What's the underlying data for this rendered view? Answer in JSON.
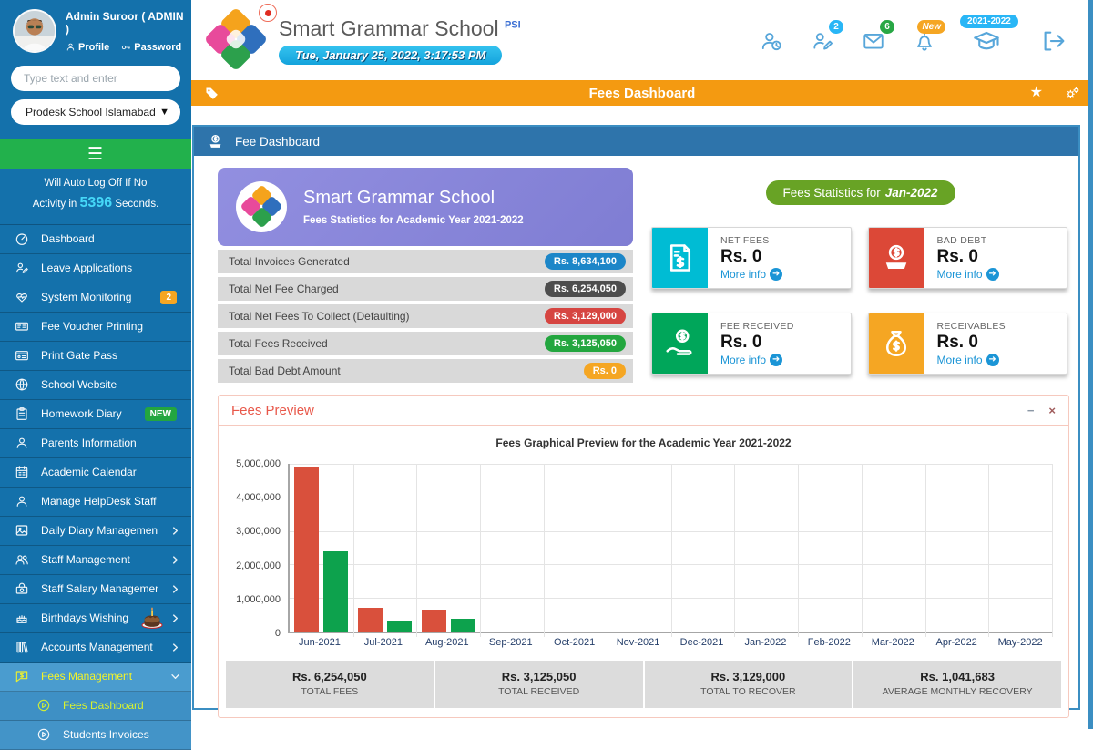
{
  "sidebar": {
    "user": {
      "name": "Admin Suroor ( ADMIN )",
      "profile_label": "Profile",
      "password_label": "Password"
    },
    "search_placeholder": "Type text and enter",
    "school_select_value": "Prodesk School Islamabad",
    "auto_logoff": {
      "line1": "Will Auto Log Off If No",
      "prefix": "Activity in",
      "seconds": "5396",
      "suffix": "Seconds."
    },
    "items": [
      {
        "label": "Dashboard",
        "icon": "gauge-icon"
      },
      {
        "label": "Leave Applications",
        "icon": "user-pen-icon"
      },
      {
        "label": "System Monitoring",
        "icon": "heart-pulse-icon",
        "badge": "2",
        "badge_color": "#F5A623"
      },
      {
        "label": "Fee Voucher Printing",
        "icon": "money-check-icon"
      },
      {
        "label": "Print Gate Pass",
        "icon": "id-card-icon"
      },
      {
        "label": "School Website",
        "icon": "globe-icon"
      },
      {
        "label": "Homework Diary",
        "icon": "clipboard-icon",
        "badge": "NEW",
        "badge_color": "#23A63F"
      },
      {
        "label": "Parents Information",
        "icon": "user-icon"
      },
      {
        "label": "Academic Calendar",
        "icon": "calendar-icon"
      },
      {
        "label": "Manage HelpDesk Staff",
        "icon": "user-icon"
      },
      {
        "label": "Daily Diary Management",
        "icon": "image-icon",
        "chevron": true
      },
      {
        "label": "Staff Management",
        "icon": "users-icon",
        "chevron": true
      },
      {
        "label": "Staff Salary Management",
        "icon": "salary-icon",
        "chevron": true
      },
      {
        "label": "Birthdays Wishing",
        "icon": "cake-icon",
        "chevron": true
      },
      {
        "label": "Accounts Management",
        "icon": "books-icon",
        "chevron": true
      }
    ],
    "fees_management_label": "Fees Management",
    "submenu": [
      {
        "label": "Fees Dashboard",
        "active": true
      },
      {
        "label": "Students Invoices",
        "active": false
      }
    ]
  },
  "header": {
    "school_name": "Smart Grammar School",
    "school_sup": "PSI",
    "datetime": "Tue, January 25, 2022, 3:17:53 PM",
    "badges": {
      "leave_requests": "2",
      "messages": "6",
      "notifications": "New",
      "session": "2021-2022"
    }
  },
  "titlebar": {
    "title": "Fees Dashboard"
  },
  "panel": {
    "title": "Fee Dashboard",
    "card": {
      "school": "Smart Grammar School",
      "subtitle": "Fees Statistics for Academic Year 2021-2022"
    },
    "stats": [
      {
        "label": "Total Invoices Generated",
        "value": "Rs. 8,634,100",
        "color": "#1C86C8"
      },
      {
        "label": "Total Net Fee Charged",
        "value": "Rs. 6,254,050",
        "color": "#4D4D4D"
      },
      {
        "label": "Total Net Fees To Collect (Defaulting)",
        "value": "Rs. 3,129,000",
        "color": "#D64541"
      },
      {
        "label": "Total Fees Received",
        "value": "Rs. 3,125,050",
        "color": "#23A63F"
      },
      {
        "label": "Total Bad Debt Amount",
        "value": "Rs. 0",
        "color": "#F5A623"
      }
    ],
    "month_pill": {
      "prefix": "Fees Statistics for",
      "month": "Jan-2022"
    },
    "cards": [
      {
        "label": "NET FEES",
        "value": "Rs. 0",
        "more": "More info",
        "color": "#00BCD4",
        "icon": "file-invoice-dollar-icon"
      },
      {
        "label": "BAD DEBT",
        "value": "Rs. 0",
        "more": "More info",
        "color": "#DC4837",
        "icon": "donate-icon"
      },
      {
        "label": "FEE RECEIVED",
        "value": "Rs. 0",
        "more": "More info",
        "color": "#00A65A",
        "icon": "hand-holding-dollar-icon"
      },
      {
        "label": "RECEIVABLES",
        "value": "Rs. 0",
        "more": "More info",
        "color": "#F5A623",
        "icon": "money-bag-icon"
      }
    ]
  },
  "preview": {
    "title": "Fees Preview",
    "minimize_label": "−",
    "close_label": "×",
    "summary": [
      {
        "value": "Rs. 6,254,050",
        "label": "TOTAL FEES"
      },
      {
        "value": "Rs. 3,125,050",
        "label": "TOTAL RECEIVED"
      },
      {
        "value": "Rs. 3,129,000",
        "label": "TOTAL TO RECOVER"
      },
      {
        "value": "Rs. 1,041,683",
        "label": "AVERAGE MONTHLY RECOVERY"
      }
    ]
  },
  "chart_data": {
    "type": "bar",
    "title": "Fees Graphical Preview for the Academic Year 2021-2022",
    "categories": [
      "Jun-2021",
      "Jul-2021",
      "Aug-2021",
      "Sep-2021",
      "Oct-2021",
      "Nov-2021",
      "Dec-2021",
      "Jan-2022",
      "Feb-2022",
      "Mar-2022",
      "Apr-2022",
      "May-2022"
    ],
    "series": [
      {
        "name": "red",
        "color": "#D9503C",
        "values": [
          4900000,
          700000,
          640000,
          0,
          0,
          0,
          0,
          0,
          0,
          0,
          0,
          0
        ]
      },
      {
        "name": "green",
        "color": "#0DA24D",
        "values": [
          2380000,
          330000,
          375000,
          0,
          0,
          0,
          0,
          0,
          0,
          0,
          0,
          0
        ]
      }
    ],
    "ylim": [
      0,
      5000000
    ],
    "ytick_step": 1000000,
    "grid": true,
    "legend_position": "none"
  }
}
